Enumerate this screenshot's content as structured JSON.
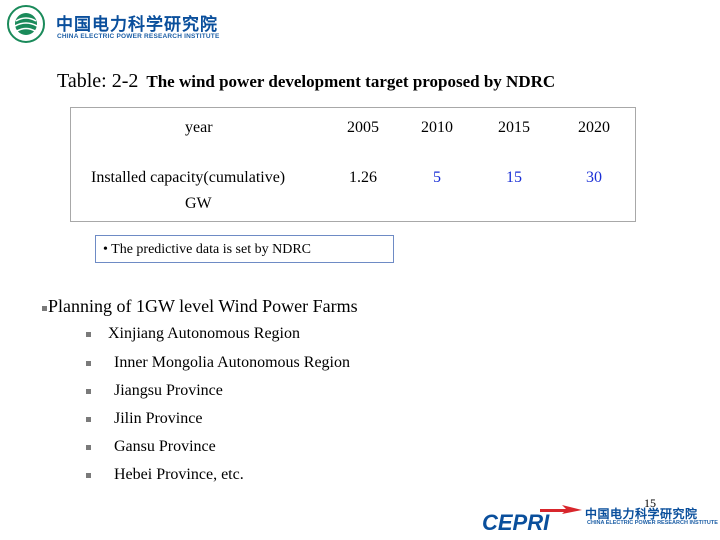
{
  "header": {
    "org_name_cn": "中国电力科学研究院",
    "org_name_en": "CHINA ELECTRIC POWER RESEARCH INSTITUTE",
    "logo_icon": "sgcc-globe-logo-icon"
  },
  "title": {
    "number": "Table: 2-2",
    "description": "The wind power development target proposed by NDRC"
  },
  "table": {
    "header_label": "year",
    "years": [
      "2005",
      "2010",
      "2015",
      "2020"
    ],
    "row_label_line1": "Installed capacity(cumulative)",
    "row_label_line2": "GW",
    "values": [
      "1.26",
      "5",
      "15",
      "30"
    ],
    "highlight_color": "#1a2fd6"
  },
  "note": {
    "text": "• The predictive data is set by NDRC"
  },
  "planning": {
    "title": "Planning of 1GW level Wind Power Farms",
    "items": [
      "Xinjiang  Autonomous Region",
      "Inner Mongolia Autonomous Region",
      "Jiangsu Province",
      "Jilin  Province",
      "Gansu  Province",
      "Hebei  Province, etc."
    ]
  },
  "footer": {
    "page_number": "15",
    "brand": "CEPRI",
    "org_name_cn": "中国电力科学研究院",
    "org_name_en": "CHINA ELECTRIC POWER RESEARCH INSTITUTE",
    "brand_color": "#0a4f9c",
    "accent_color": "#d8262c"
  }
}
